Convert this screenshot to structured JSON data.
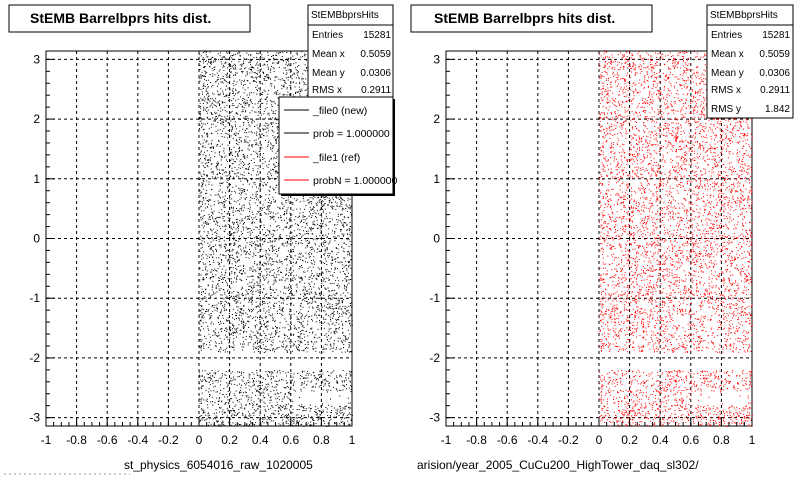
{
  "titles": [
    "StEMB Barrelbprs hits dist.",
    "StEMB Barrelbprs hits dist."
  ],
  "stats": [
    {
      "title": "StEMBbprsHits",
      "rows": [
        [
          "Entries",
          "15281"
        ],
        [
          "Mean x",
          "0.5059"
        ],
        [
          "Mean y",
          "0.0306"
        ],
        [
          "RMS x",
          "0.2911"
        ]
      ]
    },
    {
      "title": "StEMBbprsHits",
      "rows": [
        [
          "Entries",
          "15281"
        ],
        [
          "Mean x",
          "0.5059"
        ],
        [
          "Mean y",
          "0.0306"
        ],
        [
          "RMS x",
          "0.2911"
        ],
        [
          "RMS y",
          "1.842"
        ]
      ]
    }
  ],
  "legend": [
    {
      "label": "_file0 (new)",
      "color": "#000000"
    },
    {
      "label": "prob = 1.000000",
      "color": "#000000"
    },
    {
      "label": "_file1 (ref)",
      "color": "#ff0000"
    },
    {
      "label": "probN = 1.000000",
      "color": "#ff0000"
    }
  ],
  "xtexts": [
    "st_physics_6054016_raw_1020005",
    "arision/year_2005_CuCu200_HighTower_daq_sl302/"
  ],
  "chart_data": [
    {
      "type": "scatter",
      "title": "StEMB Barrelbprs hits dist.",
      "color": "#000000",
      "xlim": [
        -1,
        1
      ],
      "ylim": [
        -3.14,
        3.14
      ],
      "grid": true,
      "xticks": [
        "-1",
        "-0.8",
        "-0.6",
        "-0.4",
        "-0.2",
        "0",
        "0.2",
        "0.4",
        "0.6",
        "0.8",
        "1"
      ],
      "yticks": [
        "-3",
        "-2",
        "-1",
        "0",
        "1",
        "2",
        "3"
      ],
      "occupied_x": [
        0,
        1
      ],
      "gap_y": [
        -2.2,
        -1.9
      ],
      "sparse_band": {
        "x": [
          0.6,
          0.97
        ],
        "y": [
          -2.78,
          -2.55
        ]
      },
      "entries": 15281
    },
    {
      "type": "scatter",
      "title": "StEMB Barrelbprs hits dist.",
      "color": "#ff0000",
      "xlim": [
        -1,
        1
      ],
      "ylim": [
        -3.14,
        3.14
      ],
      "grid": true,
      "xticks": [
        "-1",
        "-0.8",
        "-0.6",
        "-0.4",
        "-0.2",
        "0",
        "0.2",
        "0.4",
        "0.6",
        "0.8",
        "1"
      ],
      "yticks": [
        "-3",
        "-2",
        "-1",
        "0",
        "1",
        "2",
        "3"
      ],
      "occupied_x": [
        0,
        1
      ],
      "gap_y": [
        -2.2,
        -1.9
      ],
      "sparse_band": {
        "x": [
          0.6,
          0.97
        ],
        "y": [
          -2.78,
          -2.55
        ]
      },
      "entries": 15281
    }
  ]
}
